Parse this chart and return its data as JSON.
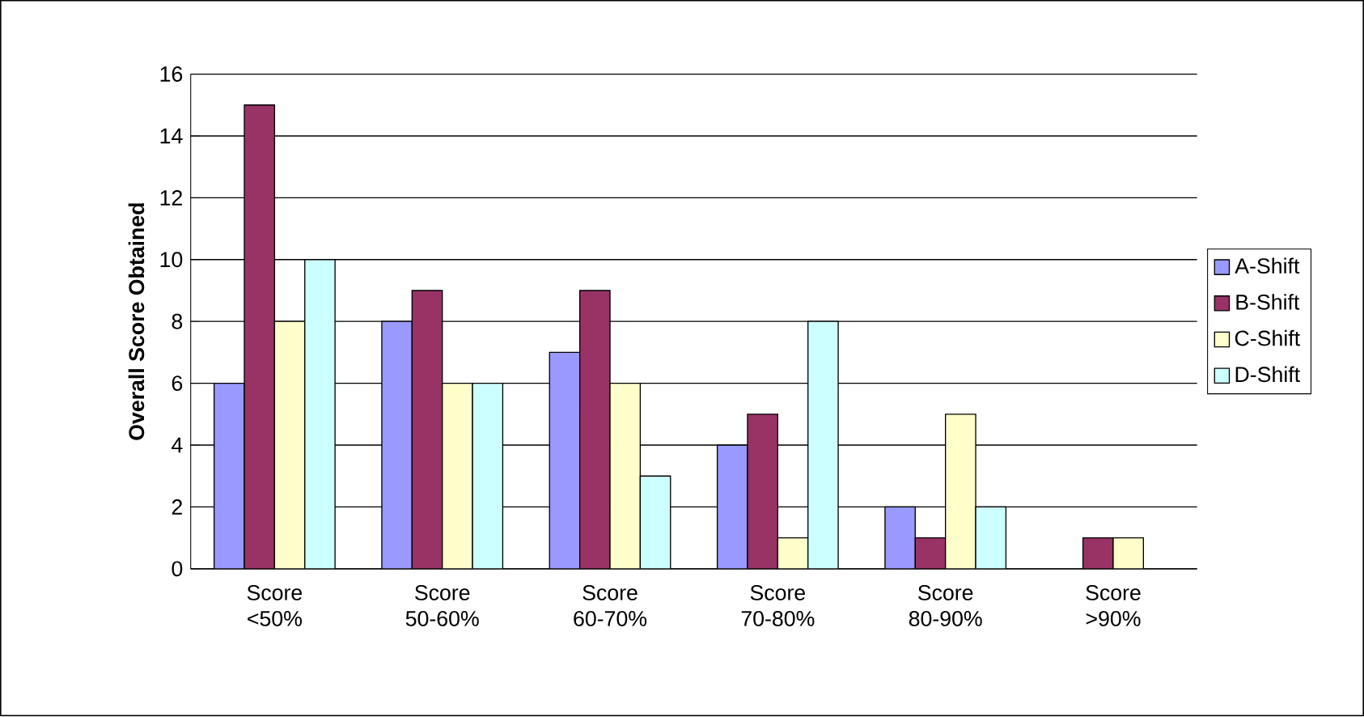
{
  "chart_data": {
    "type": "bar",
    "ylabel": "Overall Score Obtained",
    "categories": [
      "Score <50%",
      "Score 50-60%",
      "Score 60-70%",
      "Score 70-80%",
      "Score 80-90%",
      "Score >90%"
    ],
    "series": [
      {
        "name": "A-Shift",
        "color": "#9999ff",
        "values": [
          6,
          8,
          7,
          4,
          2,
          null
        ]
      },
      {
        "name": "B-Shift",
        "color": "#993366",
        "values": [
          15,
          9,
          9,
          5,
          1,
          1
        ]
      },
      {
        "name": "C-Shift",
        "color": "#ffffcc",
        "values": [
          8,
          6,
          6,
          1,
          5,
          1
        ]
      },
      {
        "name": "D-Shift",
        "color": "#ccffff",
        "values": [
          10,
          6,
          3,
          8,
          2,
          null
        ]
      }
    ],
    "ylim": [
      0,
      16
    ],
    "yticks": [
      0,
      2,
      4,
      6,
      8,
      10,
      12,
      14,
      16
    ],
    "grid": "y",
    "legend": "right"
  }
}
